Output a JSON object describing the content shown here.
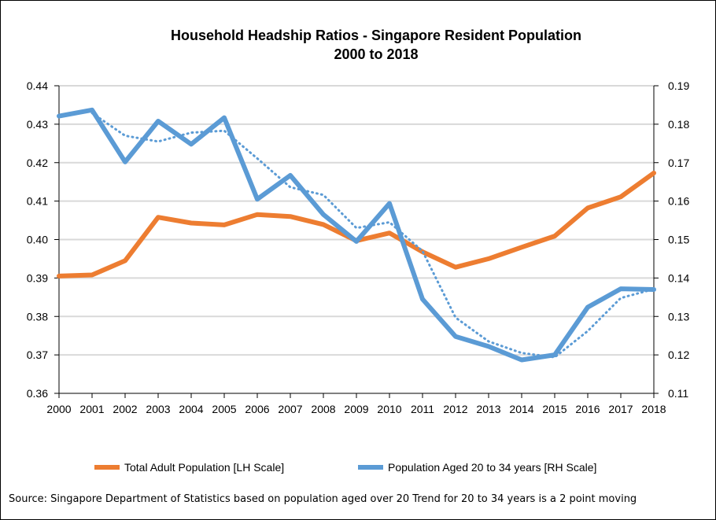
{
  "chart_data": {
    "type": "line",
    "title": "Household Headship Ratios - Singapore Resident Population",
    "subtitle": "2000 to 2018",
    "x": [
      "2000",
      "2001",
      "2002",
      "2003",
      "2004",
      "2005",
      "2006",
      "2007",
      "2008",
      "2009",
      "2010",
      "2011",
      "2012",
      "2013",
      "2014",
      "2015",
      "2016",
      "2017",
      "2018"
    ],
    "left_axis": {
      "ylim": [
        0.36,
        0.44
      ],
      "ticks": [
        "0.36",
        "0.37",
        "0.38",
        "0.39",
        "0.40",
        "0.41",
        "0.42",
        "0.43",
        "0.44"
      ]
    },
    "right_axis": {
      "ylim": [
        0.11,
        0.19
      ],
      "ticks": [
        "0.11",
        "0.12",
        "0.13",
        "0.14",
        "0.15",
        "0.16",
        "0.17",
        "0.18",
        "0.19"
      ]
    },
    "grid": true,
    "legend_position": "bottom",
    "series": [
      {
        "name": "Total Adult Population [LH Scale]",
        "axis": "left",
        "color": "#ED7D31",
        "style": "solid",
        "values": [
          0.3905,
          0.3908,
          0.3945,
          0.4058,
          0.4043,
          0.4038,
          0.4065,
          0.406,
          0.4039,
          0.3997,
          0.4017,
          0.3968,
          0.3928,
          0.395,
          0.398,
          0.4009,
          0.4082,
          0.4111,
          0.4173
        ]
      },
      {
        "name": "Population Aged 20 to 34 years [RH Scale]",
        "axis": "right",
        "color": "#5B9BD5",
        "style": "solid",
        "values": [
          0.1821,
          0.1837,
          0.1702,
          0.1808,
          0.1748,
          0.1817,
          0.1605,
          0.1667,
          0.1565,
          0.1495,
          0.1594,
          0.1345,
          0.1248,
          0.1222,
          0.1187,
          0.12,
          0.1324,
          0.1372,
          0.137
        ]
      },
      {
        "axis": "right",
        "color": "#5B9BD5",
        "style": "dotted",
        "values": [
          null,
          0.1829,
          0.177,
          0.1755,
          0.1778,
          0.1783,
          0.1711,
          0.1636,
          0.1616,
          0.153,
          0.1545,
          0.147,
          0.1297,
          0.1235,
          0.1205,
          0.1194,
          0.1262,
          0.1348,
          0.1371
        ]
      }
    ],
    "source_note": "Source: Singapore Department of Statistics based on population aged over 20  Trend for 20 to 34 years is a 2 point moving"
  }
}
